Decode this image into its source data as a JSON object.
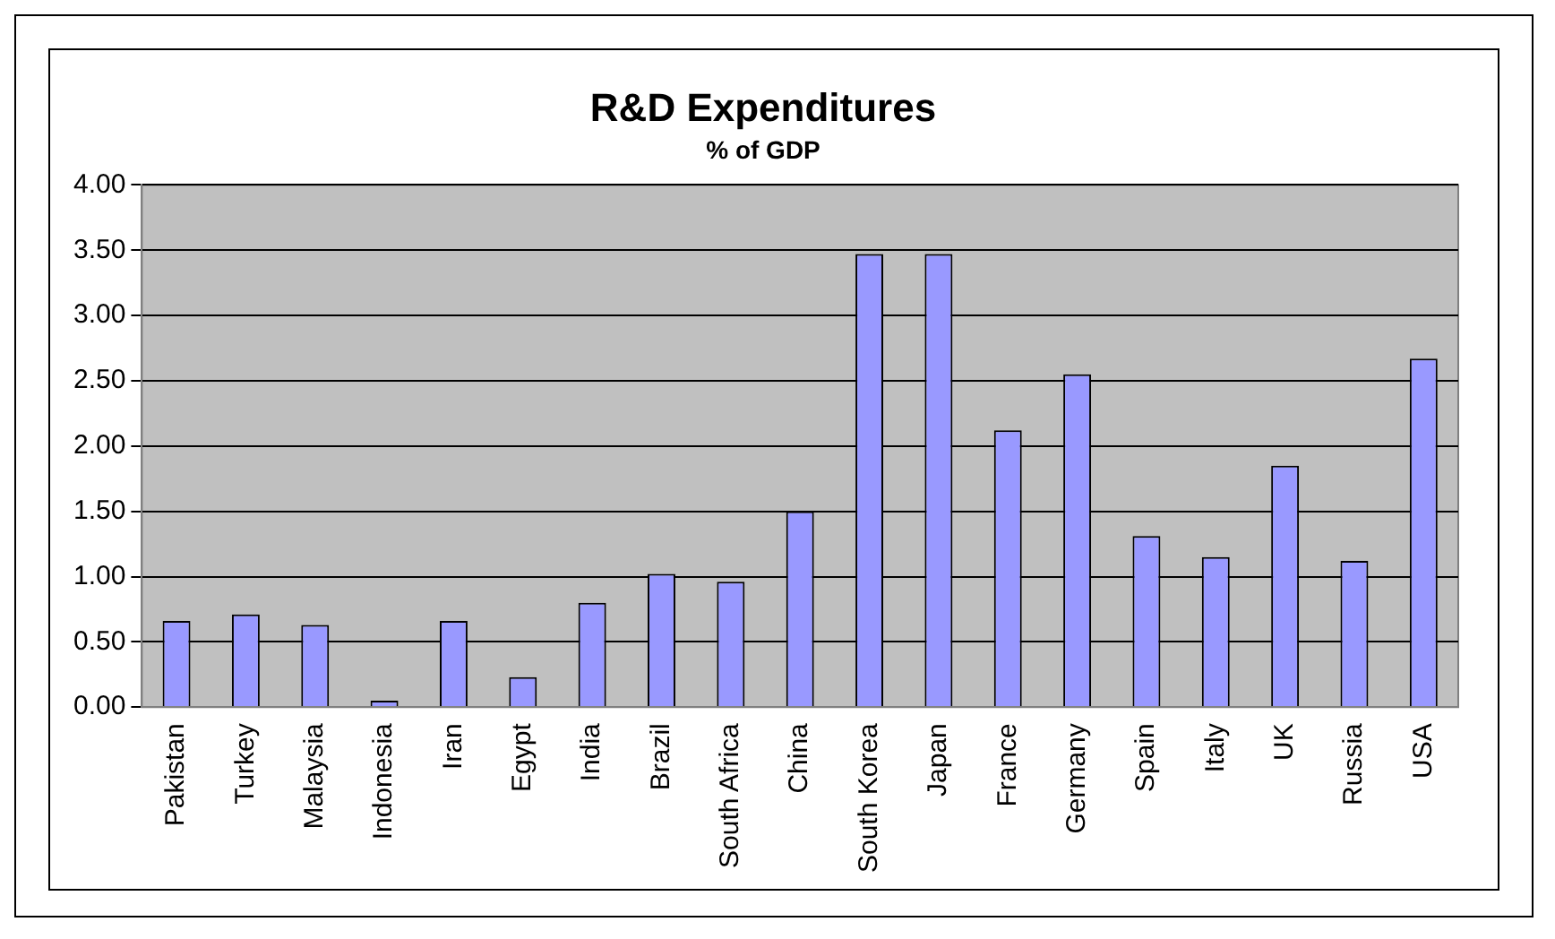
{
  "chart_data": {
    "type": "bar",
    "title": "R&D Expenditures",
    "subtitle": "% of GDP",
    "categories": [
      "Pakistan",
      "Turkey",
      "Malaysia",
      "Indonesia",
      "Iran",
      "Egypt",
      "India",
      "Brazil",
      "South Africa",
      "China",
      "South Korea",
      "Japan",
      "France",
      "Germany",
      "Spain",
      "Italy",
      "UK",
      "Russia",
      "USA"
    ],
    "values": [
      0.66,
      0.71,
      0.63,
      0.05,
      0.66,
      0.23,
      0.8,
      1.02,
      0.96,
      1.5,
      3.47,
      3.47,
      2.12,
      2.55,
      1.31,
      1.15,
      1.85,
      1.12,
      2.67
    ],
    "color": "#9999ff",
    "ylim": [
      0,
      4
    ],
    "yticks": [
      {
        "value": 0,
        "label": "0.00"
      },
      {
        "value": 0.5,
        "label": "0.50"
      },
      {
        "value": 1,
        "label": "1.00"
      },
      {
        "value": 1.5,
        "label": "1.50"
      },
      {
        "value": 2,
        "label": "2.00"
      },
      {
        "value": 2.5,
        "label": "2.50"
      },
      {
        "value": 3,
        "label": "3.00"
      },
      {
        "value": 3.5,
        "label": "3.50"
      },
      {
        "value": 4,
        "label": "4.00"
      }
    ],
    "grid": "y",
    "legend": false
  }
}
